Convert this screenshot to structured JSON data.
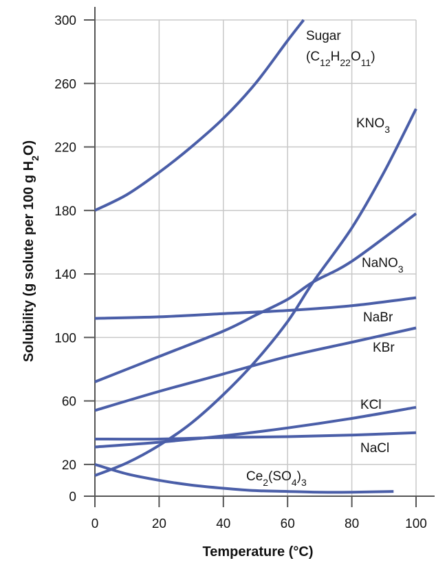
{
  "chart_data": {
    "type": "line",
    "title": "",
    "xlabel": "Temperature (°C)",
    "ylabel": "Solubility (g solute per 100 g H2O)",
    "xlim": [
      0,
      100
    ],
    "ylim": [
      0,
      300
    ],
    "xticks": [
      0,
      20,
      40,
      60,
      80,
      100
    ],
    "yticks": [
      0,
      20,
      60,
      100,
      140,
      180,
      220,
      260,
      300
    ],
    "grid": true,
    "line_color": "#4a5ea8",
    "series": [
      {
        "name": "Sugar (C12H22O11)",
        "x": [
          0,
          10,
          20,
          30,
          40,
          50,
          60,
          65
        ],
        "y": [
          180,
          190,
          204,
          220,
          238,
          260,
          287,
          300
        ]
      },
      {
        "name": "KNO3",
        "x": [
          0,
          10,
          20,
          30,
          40,
          50,
          60,
          68,
          80,
          90,
          100
        ],
        "y": [
          13,
          21,
          32,
          46,
          64,
          85,
          110,
          135,
          169,
          204,
          244
        ]
      },
      {
        "name": "NaNO3",
        "x": [
          0,
          20,
          40,
          50,
          60,
          68,
          80,
          100
        ],
        "y": [
          72,
          88,
          104,
          114,
          124,
          135,
          148,
          178
        ]
      },
      {
        "name": "NaBr",
        "x": [
          0,
          20,
          40,
          60,
          80,
          100
        ],
        "y": [
          112,
          113,
          115,
          117,
          120,
          125
        ]
      },
      {
        "name": "KBr",
        "x": [
          0,
          20,
          40,
          60,
          80,
          100
        ],
        "y": [
          54,
          66,
          77,
          88,
          97,
          106
        ]
      },
      {
        "name": "KCl",
        "x": [
          0,
          20,
          40,
          60,
          80,
          100
        ],
        "y": [
          31,
          34,
          38,
          43,
          49,
          56
        ]
      },
      {
        "name": "NaCl",
        "x": [
          0,
          20,
          40,
          60,
          80,
          100
        ],
        "y": [
          36,
          36,
          37,
          37.5,
          38.5,
          40
        ]
      },
      {
        "name": "Ce2(SO4)3",
        "x": [
          0,
          10,
          20,
          30,
          40,
          50,
          60,
          70,
          80,
          93
        ],
        "y": [
          20,
          14,
          10,
          7,
          5,
          3.5,
          3,
          2.5,
          2.5,
          3
        ]
      }
    ]
  }
}
